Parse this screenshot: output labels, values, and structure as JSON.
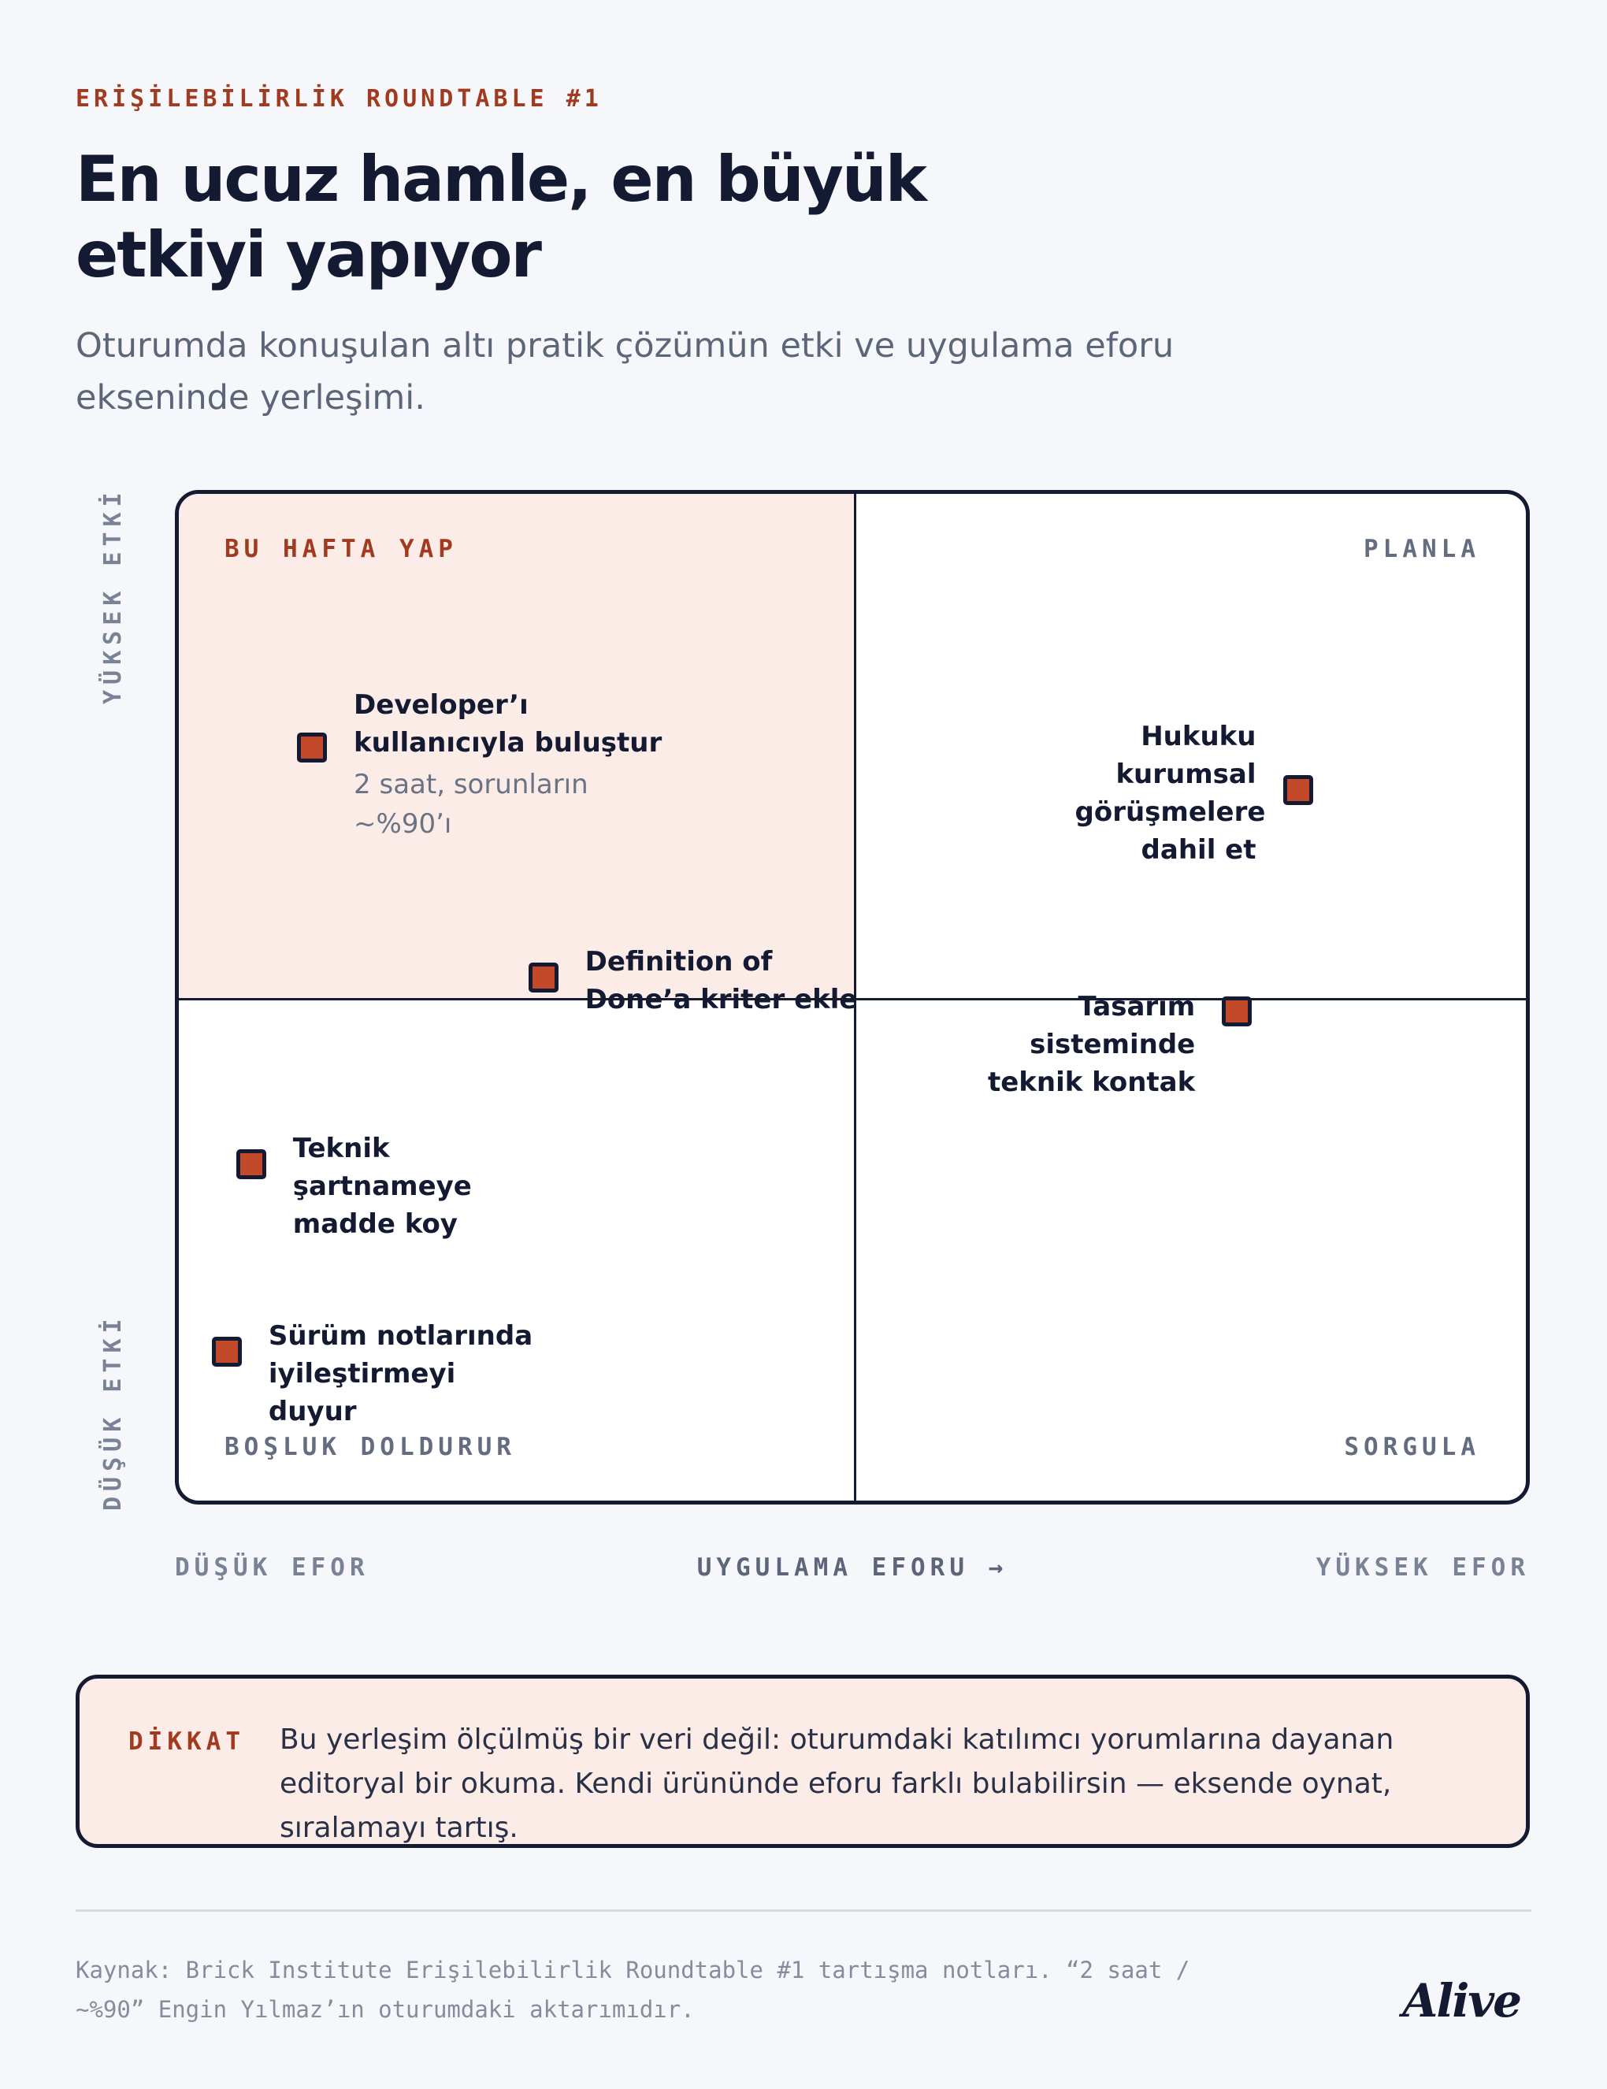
{
  "header": {
    "kicker": "ERİŞİLEBİLİRLİK ROUNDTABLE #1",
    "title": "En ucuz hamle, en büyük etkiyi yapıyor",
    "subtitle": "Oturumda konuşulan altı pratik çözümün etki ve uygulama eforu ekseninde yerleşimi."
  },
  "chart_data": {
    "type": "scatter",
    "xlabel": "UYGULAMA EFORU →",
    "x_tick_labels": [
      "DÜŞÜK EFOR",
      "YÜKSEK EFOR"
    ],
    "y_tick_labels": [
      "DÜŞÜK ETKİ",
      "YÜKSEK ETKİ"
    ],
    "xlim": [
      0,
      100
    ],
    "ylim": [
      0,
      100
    ],
    "grid": false,
    "quadrants": {
      "top_left": "BU HAFTA YAP",
      "top_right": "PLANLA",
      "bottom_left": "BOŞLUK DOLDURUR",
      "bottom_right": "SORGULA"
    },
    "points": [
      {
        "label": "Developer’ı kullanıcıyla buluştur",
        "note": "2 saat, sorunların ~%90’ı",
        "x": 9,
        "y": 85
      },
      {
        "label": "Definition of Done’a kriter ekle",
        "x": 28,
        "y": 58
      },
      {
        "label": "Hukuku kurumsal görüşmelere dahil et",
        "x": 90,
        "y": 80
      },
      {
        "label": "Tasarım sisteminde teknik kontak",
        "x": 85,
        "y": 54
      },
      {
        "label": "Teknik şartnameye madde koy",
        "x": 4,
        "y": 36
      },
      {
        "label": "Sürüm notlarında iyileştirmeyi duyur",
        "x": 2,
        "y": 14
      }
    ],
    "colors": {
      "point": "#c24a2b",
      "highlight_quadrant": "#fcece8"
    }
  },
  "callout": {
    "tag": "DİKKAT",
    "text": "Bu yerleşim ölçülmüş bir veri değil: oturumdaki katılımcı yorumlarına dayanan editoryal bir okuma. Kendi ürününde eforu farklı bulabilirsin — eksende oynat, sıralamayı tartış."
  },
  "footer": {
    "source": "Kaynak: Brick Institute Erişilebilirlik Roundtable #1 tartışma notları. “2 saat / ~%90” Engin Yılmaz’ın oturumdaki aktarımıdır.",
    "logo": "Alive"
  }
}
